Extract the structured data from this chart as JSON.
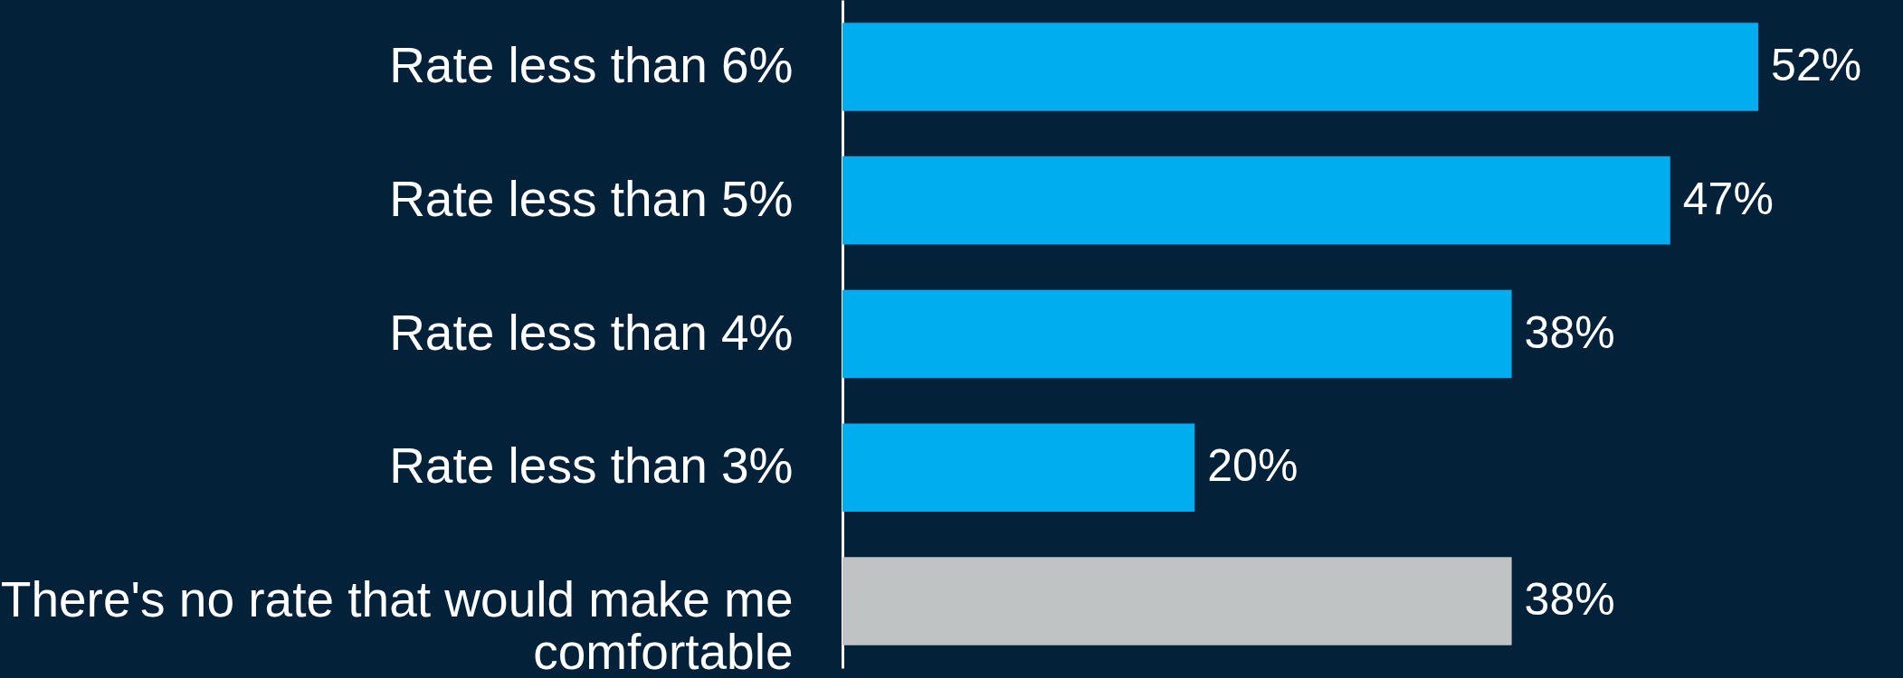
{
  "chart_data": {
    "type": "bar",
    "orientation": "horizontal",
    "categories": [
      "Rate less than 6%",
      "Rate less than 5%",
      "Rate less than 4%",
      "Rate less than 3%",
      "There's no rate that would make me comfortable"
    ],
    "values": [
      52,
      47,
      38,
      20,
      38
    ],
    "value_labels": [
      "52%",
      "47%",
      "38%",
      "20%",
      "38%"
    ],
    "colors": [
      "#00adef",
      "#00adef",
      "#00adef",
      "#00adef",
      "#bfc3c4"
    ],
    "grid": false,
    "tick_labels": "y"
  }
}
